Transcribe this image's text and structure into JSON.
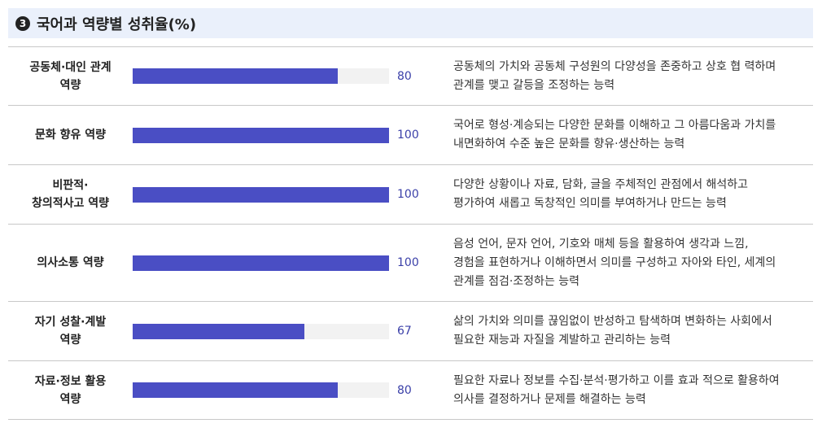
{
  "header": {
    "badge": "3",
    "title": "국어과 역량별 성취율(%)"
  },
  "colors": {
    "bar": "#4a4ec4",
    "track": "#f2f2f2",
    "value_text": "#3a3fa8",
    "header_bg": "#eaf0fb"
  },
  "chart_data": {
    "type": "bar",
    "title": "국어과 역량별 성취율(%)",
    "ylim": [
      0,
      100
    ],
    "categories": [
      "공동체·대인 관계 역량",
      "문화 향유 역량",
      "비판적·창의적사고 역량",
      "의사소통 역량",
      "자기 성찰·계발 역량",
      "자료·정보 활용 역량"
    ],
    "values": [
      80,
      100,
      100,
      100,
      67,
      80
    ]
  },
  "rows": [
    {
      "label_lines": [
        "공동체·대인 관계",
        "역량"
      ],
      "value": 80,
      "value_text": "80",
      "desc_lines": [
        "공동체의 가치와 공동체 구성원의 다양성을 존중하고 상호 협 력하며",
        "관계를 맺고 갈등을 조정하는 능력"
      ]
    },
    {
      "label_lines": [
        "문화 향유 역량"
      ],
      "value": 100,
      "value_text": "100",
      "desc_lines": [
        "국어로 형성·계승되는 다양한 문화를 이해하고 그 아름다움과 가치를",
        "내면화하여 수준 높은 문화를 향유·생산하는 능력"
      ]
    },
    {
      "label_lines": [
        "비판적·",
        "창의적사고 역량"
      ],
      "value": 100,
      "value_text": "100",
      "desc_lines": [
        "다양한 상황이나 자료, 담화, 글을 주체적인 관점에서 해석하고",
        "평가하여 새롭고 독창적인 의미를 부여하거나 만드는 능력"
      ]
    },
    {
      "label_lines": [
        "의사소통 역량"
      ],
      "value": 100,
      "value_text": "100",
      "desc_lines": [
        "음성 언어, 문자 언어, 기호와 매체 등을 활용하여 생각과 느낌,",
        "경험을 표현하거나 이해하면서 의미를 구성하고 자아와 타인, 세계의",
        "관계를 점검·조정하는 능력"
      ]
    },
    {
      "label_lines": [
        "자기 성찰·계발",
        "역량"
      ],
      "value": 67,
      "value_text": "67",
      "desc_lines": [
        "삶의 가치와 의미를 끊임없이 반성하고 탐색하며 변화하는 사회에서",
        "필요한 재능과 자질을 계발하고 관리하는 능력"
      ]
    },
    {
      "label_lines": [
        "자료·정보 활용",
        "역량"
      ],
      "value": 80,
      "value_text": "80",
      "desc_lines": [
        "필요한 자료나 정보를 수집·분석·평가하고 이를 효과 적으로 활용하여",
        "의사를 결정하거나 문제를 해결하는 능력"
      ]
    }
  ]
}
